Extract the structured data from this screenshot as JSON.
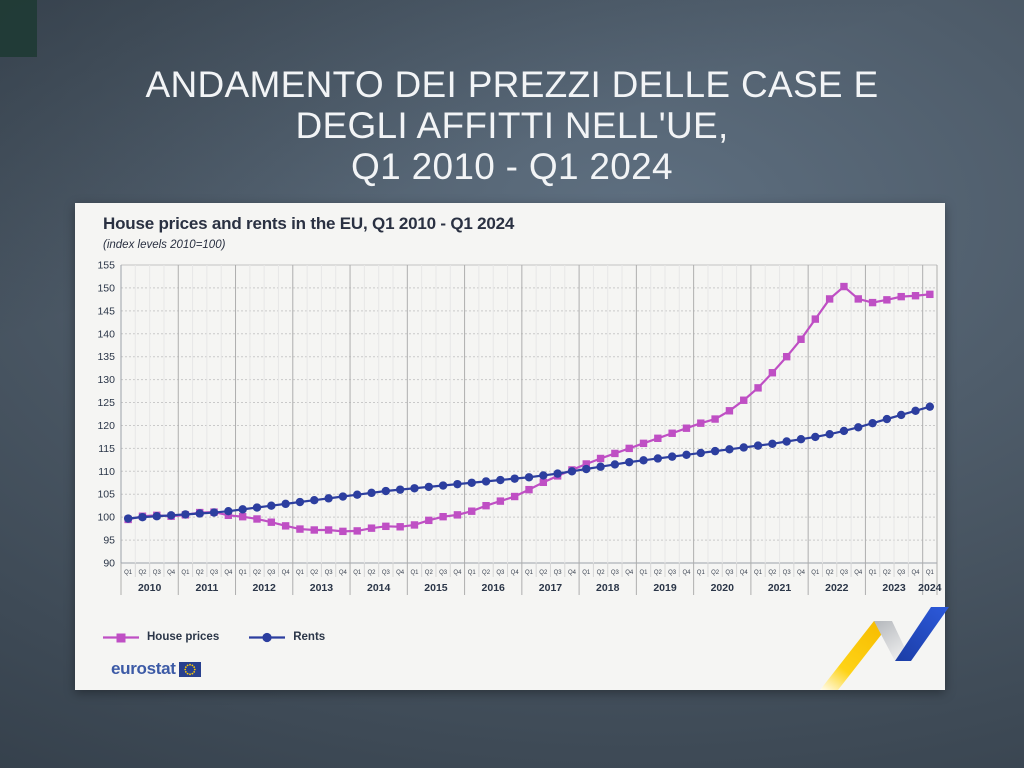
{
  "slide": {
    "title_lines": [
      "ANDAMENTO DEI PREZZI DELLE CASE E",
      "DEGLI AFFITTI NELL'UE,",
      "Q1 2010 - Q1 2024"
    ]
  },
  "card": {
    "logo_text": "eurostat",
    "colors": {
      "house_prices": "#bf4fc4",
      "rents": "#2c3e9f",
      "eurostat_blue": "#3c5aa6",
      "flag_blue": "#28408e",
      "flag_star_yellow": "#ffcc00",
      "ribbon_yellow": "#fdc90a",
      "ribbon_blue": "#2450c8"
    }
  },
  "chart_data": {
    "type": "line",
    "title": "House prices and rents in the EU, Q1 2010 - Q1 2024",
    "subtitle": "(index levels 2010=100)",
    "ylim": [
      90,
      155
    ],
    "ytick_step": 5,
    "grid": "horizontal dashed every 5 units; light vertical line per quarter; solid grey separators at year boundaries",
    "legend_position": "bottom-left",
    "x_years": [
      "2010",
      "2011",
      "2012",
      "2013",
      "2014",
      "2015",
      "2016",
      "2017",
      "2018",
      "2019",
      "2020",
      "2021",
      "2022",
      "2023",
      "2024"
    ],
    "quarters_per_year": [
      4,
      4,
      4,
      4,
      4,
      4,
      4,
      4,
      4,
      4,
      4,
      4,
      4,
      4,
      1
    ],
    "quarter_labels": [
      "Q1",
      "Q2",
      "Q3",
      "Q4"
    ],
    "series": [
      {
        "name": "House prices",
        "marker": "square",
        "color": "#bf4fc4",
        "values": [
          99.5,
          100.2,
          100.4,
          100.2,
          100.5,
          101.0,
          101.1,
          100.4,
          100.1,
          99.6,
          98.9,
          98.1,
          97.4,
          97.2,
          97.2,
          96.9,
          97.0,
          97.6,
          98.0,
          97.9,
          98.3,
          99.3,
          100.1,
          100.5,
          101.3,
          102.5,
          103.5,
          104.5,
          106.0,
          107.6,
          109.0,
          110.3,
          111.6,
          112.8,
          113.9,
          115.0,
          116.1,
          117.2,
          118.3,
          119.4,
          120.5,
          121.4,
          123.2,
          125.5,
          128.2,
          131.5,
          135.0,
          138.8,
          143.2,
          147.6,
          150.3,
          147.6,
          146.8,
          147.4,
          148.1,
          148.3,
          148.6
        ]
      },
      {
        "name": "Rents",
        "marker": "circle",
        "color": "#2c3e9f",
        "values": [
          99.7,
          100.0,
          100.2,
          100.4,
          100.6,
          100.8,
          101.0,
          101.3,
          101.7,
          102.1,
          102.5,
          102.9,
          103.3,
          103.7,
          104.1,
          104.5,
          104.9,
          105.3,
          105.7,
          106.0,
          106.3,
          106.6,
          106.9,
          107.2,
          107.5,
          107.8,
          108.1,
          108.4,
          108.7,
          109.1,
          109.5,
          110.0,
          110.5,
          111.0,
          111.5,
          112.0,
          112.4,
          112.8,
          113.2,
          113.6,
          114.0,
          114.4,
          114.8,
          115.2,
          115.6,
          116.0,
          116.5,
          117.0,
          117.5,
          118.1,
          118.8,
          119.6,
          120.5,
          121.4,
          122.3,
          123.2,
          124.1
        ]
      }
    ]
  }
}
